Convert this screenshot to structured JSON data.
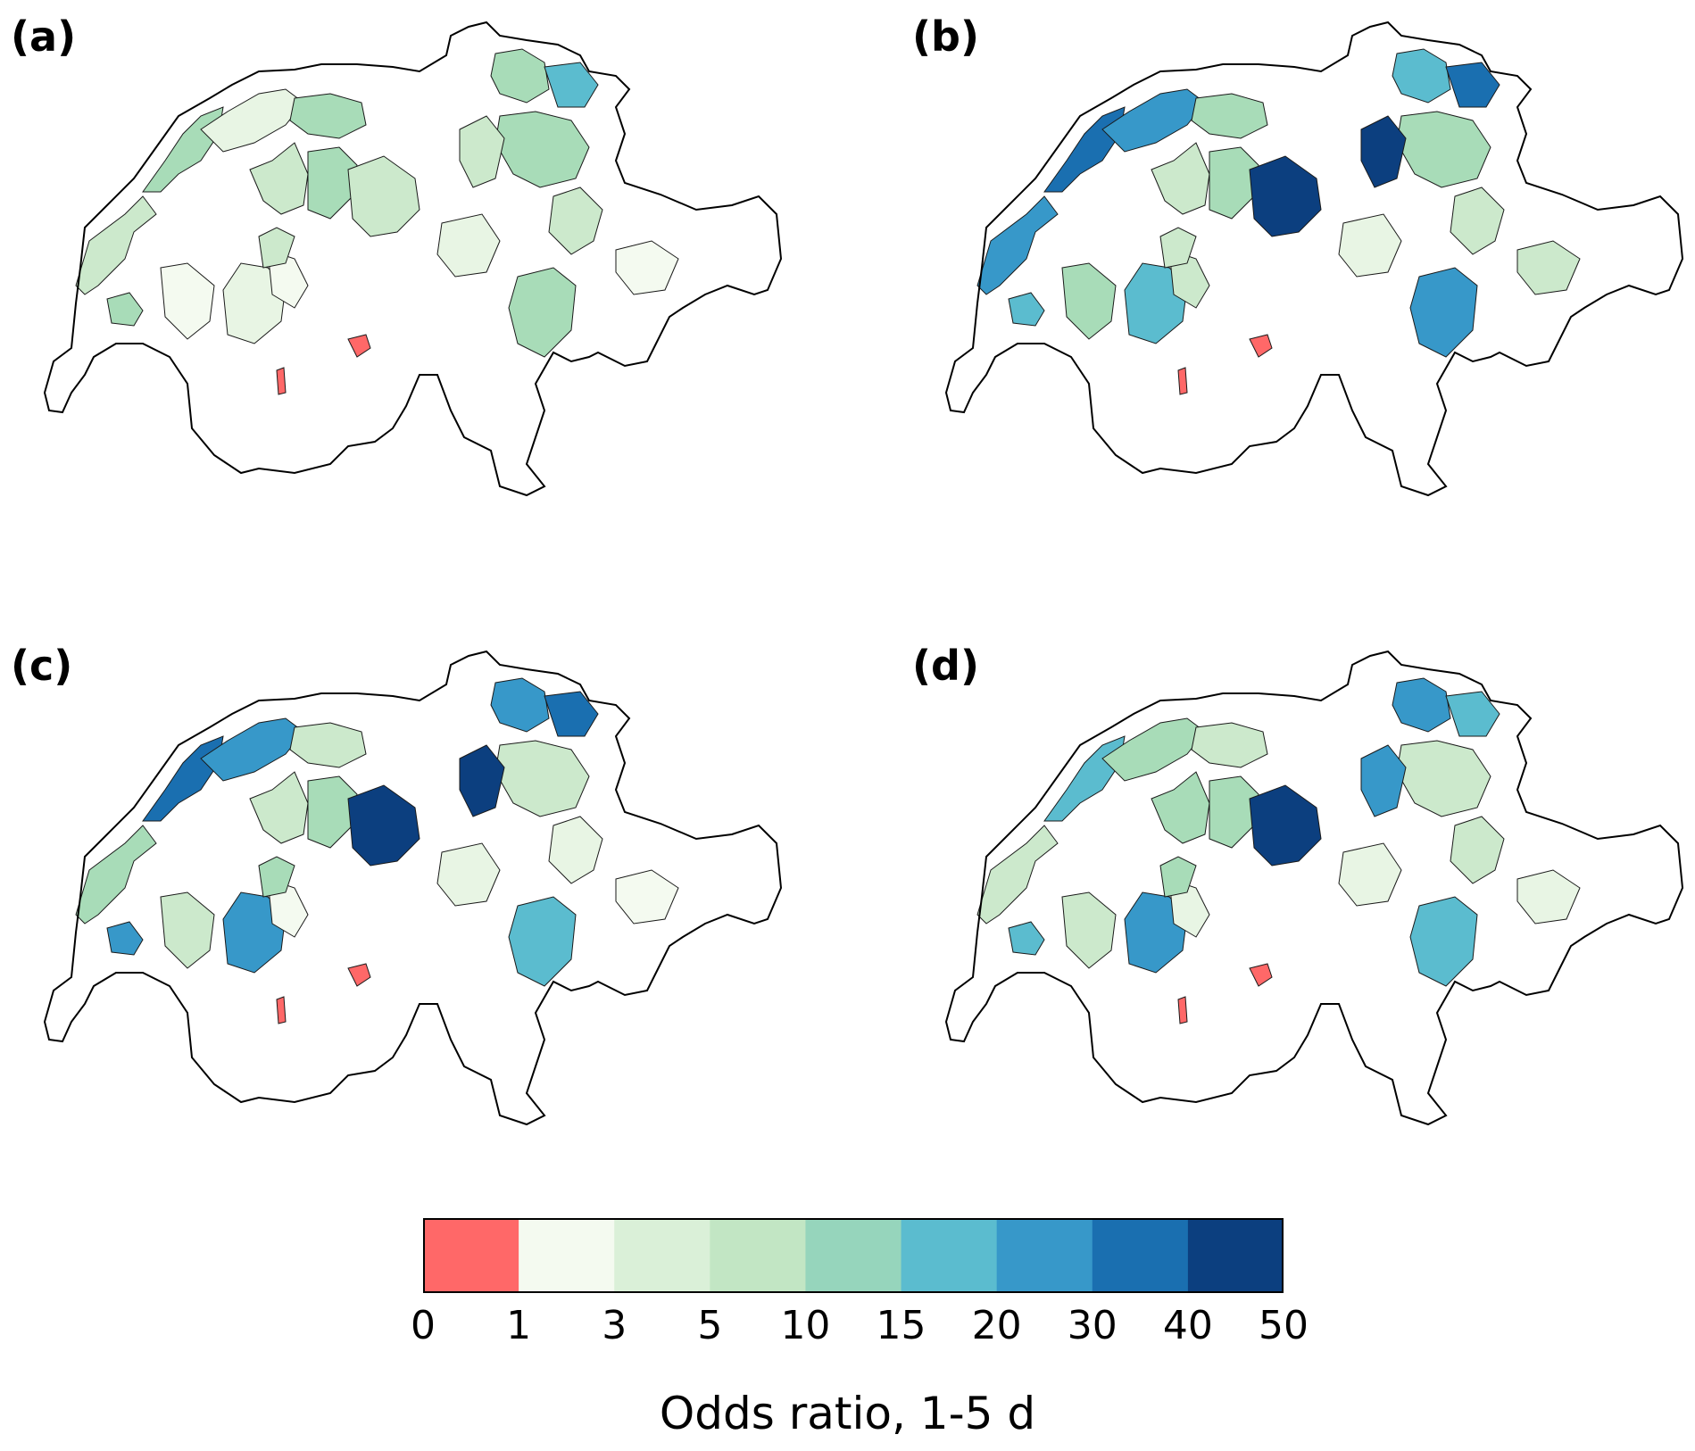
{
  "panels": [
    {
      "label": "(a)",
      "fills": [
        "#cce9cc",
        "#a8dcb8",
        "#e8f5e4",
        "#a8dcb8",
        "#cce9cc",
        "#a8dcb8",
        "#cce9cc",
        "#e8f5e4",
        "#f4faf0",
        "#f4faf0",
        "#cce9cc",
        "#a8dcb8",
        "#ff6868",
        "#ff6868",
        "#e8f5e4",
        "#a8dcb8",
        "#5bbccf",
        "#a8dcb8",
        "#cce9cc",
        "#f4faf0",
        "#a8dcb8",
        "#cce9cc"
      ]
    },
    {
      "label": "(b)",
      "fills": [
        "#3798c9",
        "#1a6fb0",
        "#3798c9",
        "#a8dcb8",
        "#cce9cc",
        "#a8dcb8",
        "#0c3f7f",
        "#5bbccf",
        "#a8dcb8",
        "#cce9cc",
        "#cce9cc",
        "#5bbccf",
        "#ff6868",
        "#ff6868",
        "#e8f5e4",
        "#5bbccf",
        "#1a6fb0",
        "#a8dcb8",
        "#cce9cc",
        "#cce9cc",
        "#3798c9",
        "#0c3f7f"
      ]
    },
    {
      "label": "(c)",
      "fills": [
        "#a8dcb8",
        "#1a6fb0",
        "#3798c9",
        "#cce9cc",
        "#cce9cc",
        "#a8dcb8",
        "#0c3f7f",
        "#3798c9",
        "#cce9cc",
        "#f4faf0",
        "#a8dcb8",
        "#3798c9",
        "#ff6868",
        "#ff6868",
        "#e8f5e4",
        "#3798c9",
        "#1a6fb0",
        "#cce9cc",
        "#e8f5e4",
        "#f4faf0",
        "#5bbccf",
        "#0c3f7f"
      ]
    },
    {
      "label": "(d)",
      "fills": [
        "#cce9cc",
        "#5bbccf",
        "#a8dcb8",
        "#cce9cc",
        "#a8dcb8",
        "#a8dcb8",
        "#0c3f7f",
        "#3798c9",
        "#cce9cc",
        "#e8f5e4",
        "#a8dcb8",
        "#5bbccf",
        "#ff6868",
        "#ff6868",
        "#e8f5e4",
        "#3798c9",
        "#5bbccf",
        "#cce9cc",
        "#cce9cc",
        "#e8f5e4",
        "#5bbccf",
        "#3798c9"
      ]
    }
  ],
  "colorbar": {
    "colors": [
      "#ff6868",
      "#f4faf0",
      "#daf0d8",
      "#c2e6c4",
      "#96d5bc",
      "#5bbccf",
      "#3798c9",
      "#1a6fb0",
      "#0c3f7f"
    ],
    "ticks": [
      "0",
      "1",
      "3",
      "5",
      "10",
      "15",
      "20",
      "30",
      "40",
      "50"
    ],
    "label": "Odds ratio, 1-5 d"
  }
}
